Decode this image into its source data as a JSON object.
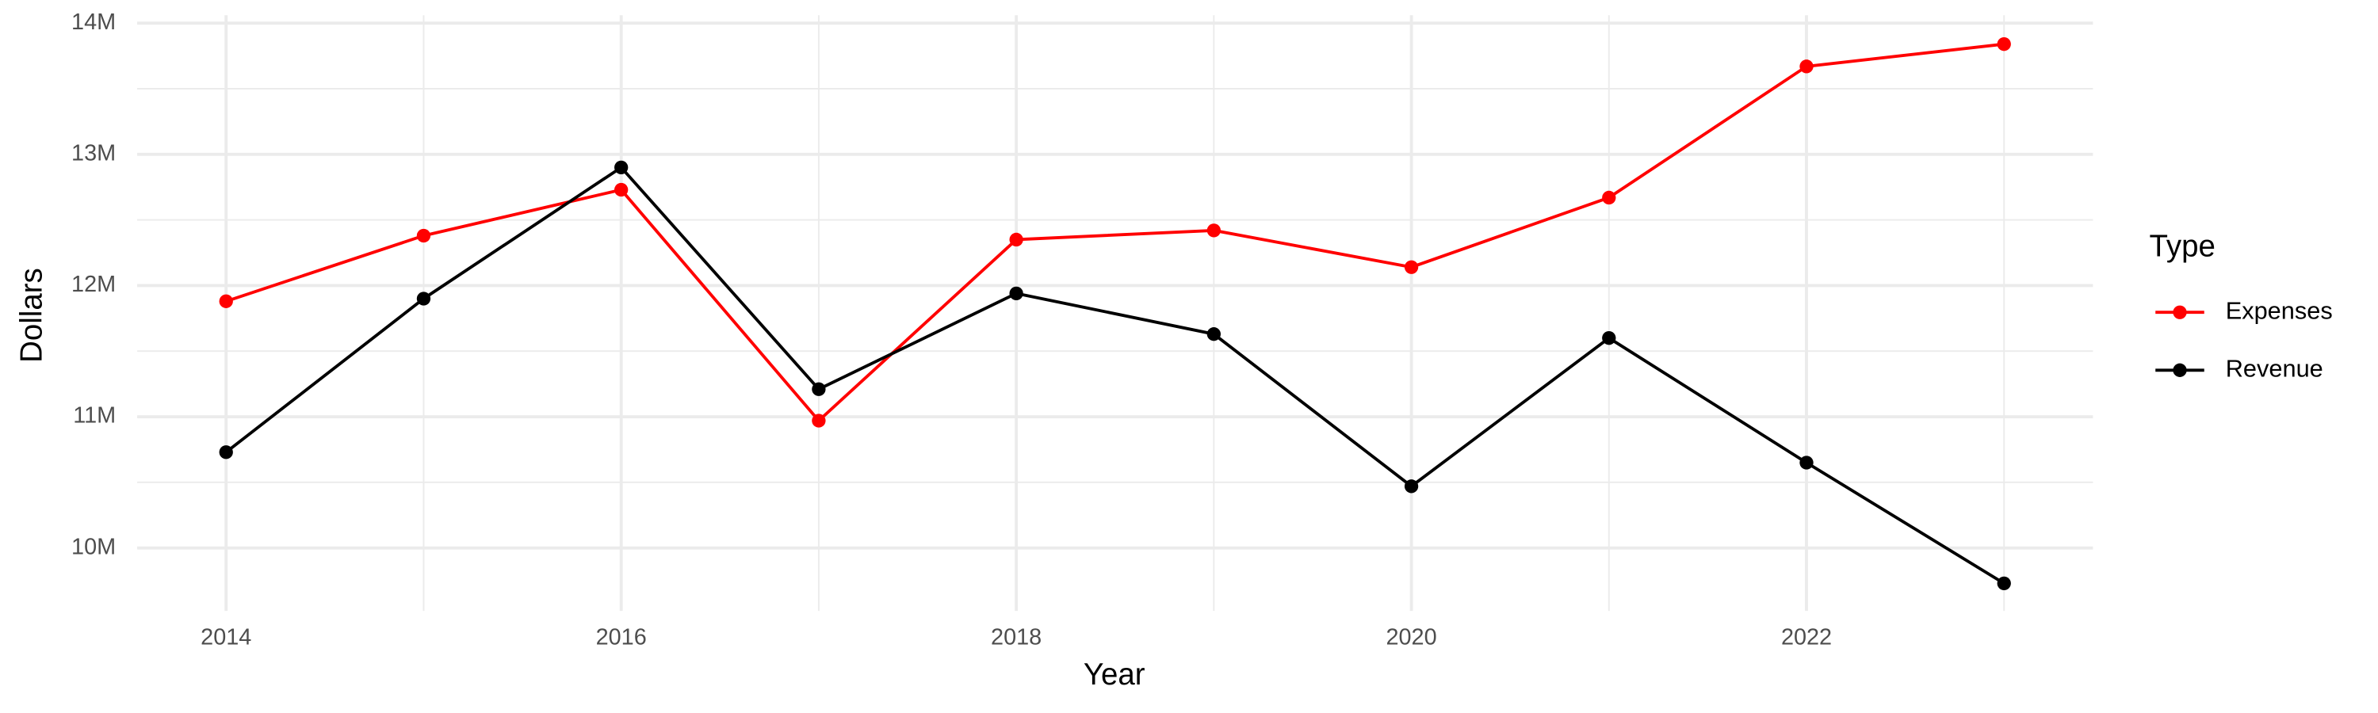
{
  "chart_data": {
    "type": "line",
    "x_label": "Year",
    "y_label": "Dollars",
    "x": [
      2014,
      2015,
      2016,
      2017,
      2018,
      2019,
      2020,
      2021,
      2022,
      2023
    ],
    "series": [
      {
        "name": "Expenses",
        "color": "#ff0000",
        "values": [
          11880000,
          12380000,
          12730000,
          10970000,
          12350000,
          12420000,
          12140000,
          12670000,
          13670000,
          13840000
        ]
      },
      {
        "name": "Revenue",
        "color": "#000000",
        "values": [
          10730000,
          11900000,
          12900000,
          11210000,
          11940000,
          11630000,
          10470000,
          11600000,
          10650000,
          9730000
        ]
      }
    ],
    "xlim": [
      2013.55,
      2023.45
    ],
    "xticks": [
      2014,
      2016,
      2018,
      2020,
      2022
    ],
    "x_minor_ticks": [
      2015,
      2017,
      2019,
      2021,
      2023
    ],
    "ylim": [
      9520000,
      14060000
    ],
    "yticks": [
      {
        "value": 10000000,
        "label": "10M"
      },
      {
        "value": 11000000,
        "label": "11M"
      },
      {
        "value": 12000000,
        "label": "12M"
      },
      {
        "value": 13000000,
        "label": "13M"
      },
      {
        "value": 14000000,
        "label": "14M"
      }
    ],
    "y_minor_ticks": [
      10500000,
      11500000,
      12500000,
      13500000
    ],
    "grid": true,
    "legend_title": "Type",
    "legend_position": "right"
  }
}
